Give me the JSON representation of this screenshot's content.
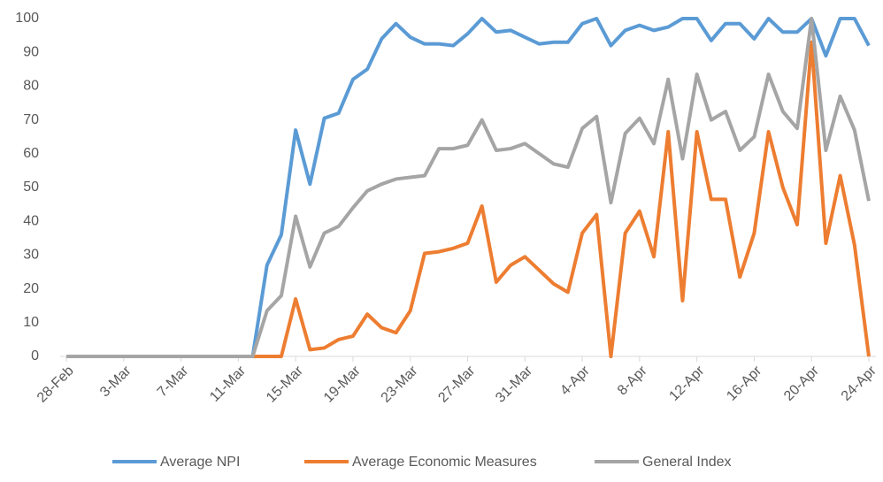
{
  "chart_data": {
    "type": "line",
    "categories": [
      "28-Feb",
      null,
      null,
      null,
      "3-Mar",
      null,
      null,
      null,
      "7-Mar",
      null,
      null,
      null,
      "11-Mar",
      null,
      null,
      null,
      "15-Mar",
      null,
      null,
      null,
      "19-Mar",
      null,
      null,
      null,
      "23-Mar",
      null,
      null,
      null,
      "27-Mar",
      null,
      null,
      null,
      "31-Mar",
      null,
      null,
      null,
      "4-Apr",
      null,
      null,
      null,
      "8-Apr",
      null,
      null,
      null,
      "12-Apr",
      null,
      null,
      null,
      "16-Apr",
      null,
      null,
      null,
      "20-Apr",
      null,
      null,
      null,
      "24-Apr"
    ],
    "series": [
      {
        "name": "Average NPI",
        "color": "#5b9bd5",
        "values": [
          0,
          0,
          0,
          0,
          0,
          0,
          0,
          0,
          0,
          0,
          0,
          0,
          0,
          0,
          27,
          36,
          67,
          51,
          70.5,
          72,
          82,
          85,
          94,
          98.5,
          94.5,
          92.5,
          92.5,
          92,
          95.5,
          100,
          96,
          96.5,
          94.5,
          92.5,
          93,
          93,
          98.5,
          100,
          92,
          96.5,
          98,
          96.5,
          97.5,
          100,
          100,
          93.5,
          98.5,
          98.5,
          94,
          100,
          96,
          96,
          100,
          89,
          100,
          100,
          92
        ]
      },
      {
        "name": "Average Economic Measures",
        "color": "#ed7d31",
        "values": [
          0,
          0,
          0,
          0,
          0,
          0,
          0,
          0,
          0,
          0,
          0,
          0,
          0,
          0,
          0,
          0,
          17,
          2,
          2.5,
          5,
          6,
          12.5,
          8.5,
          7,
          13.5,
          30.5,
          31,
          32,
          33.5,
          44.5,
          22,
          27,
          29.5,
          25.5,
          21.5,
          19,
          36.5,
          42,
          0,
          36.5,
          43,
          29.5,
          66.5,
          16.5,
          66.5,
          46.5,
          46.5,
          23.5,
          36.5,
          66.5,
          50,
          39,
          93,
          33.5,
          53.5,
          33,
          0
        ]
      },
      {
        "name": "General Index",
        "color": "#a5a5a5",
        "values": [
          0,
          0,
          0,
          0,
          0,
          0,
          0,
          0,
          0,
          0,
          0,
          0,
          0,
          0,
          13.5,
          18,
          41.5,
          26.5,
          36.5,
          38.5,
          44,
          49,
          51,
          52.5,
          53,
          53.5,
          61.5,
          61.5,
          62.5,
          70,
          61,
          61.5,
          63,
          60,
          57,
          56,
          67.5,
          71,
          45.5,
          66,
          70.5,
          63,
          82,
          58.5,
          83.5,
          70,
          72.5,
          61,
          65,
          83.5,
          72.5,
          67.5,
          100,
          61,
          77,
          67,
          46
        ]
      }
    ],
    "ylim": [
      0,
      100
    ],
    "yticks": [
      0,
      10,
      20,
      30,
      40,
      50,
      60,
      70,
      80,
      90,
      100
    ],
    "grid": false
  }
}
